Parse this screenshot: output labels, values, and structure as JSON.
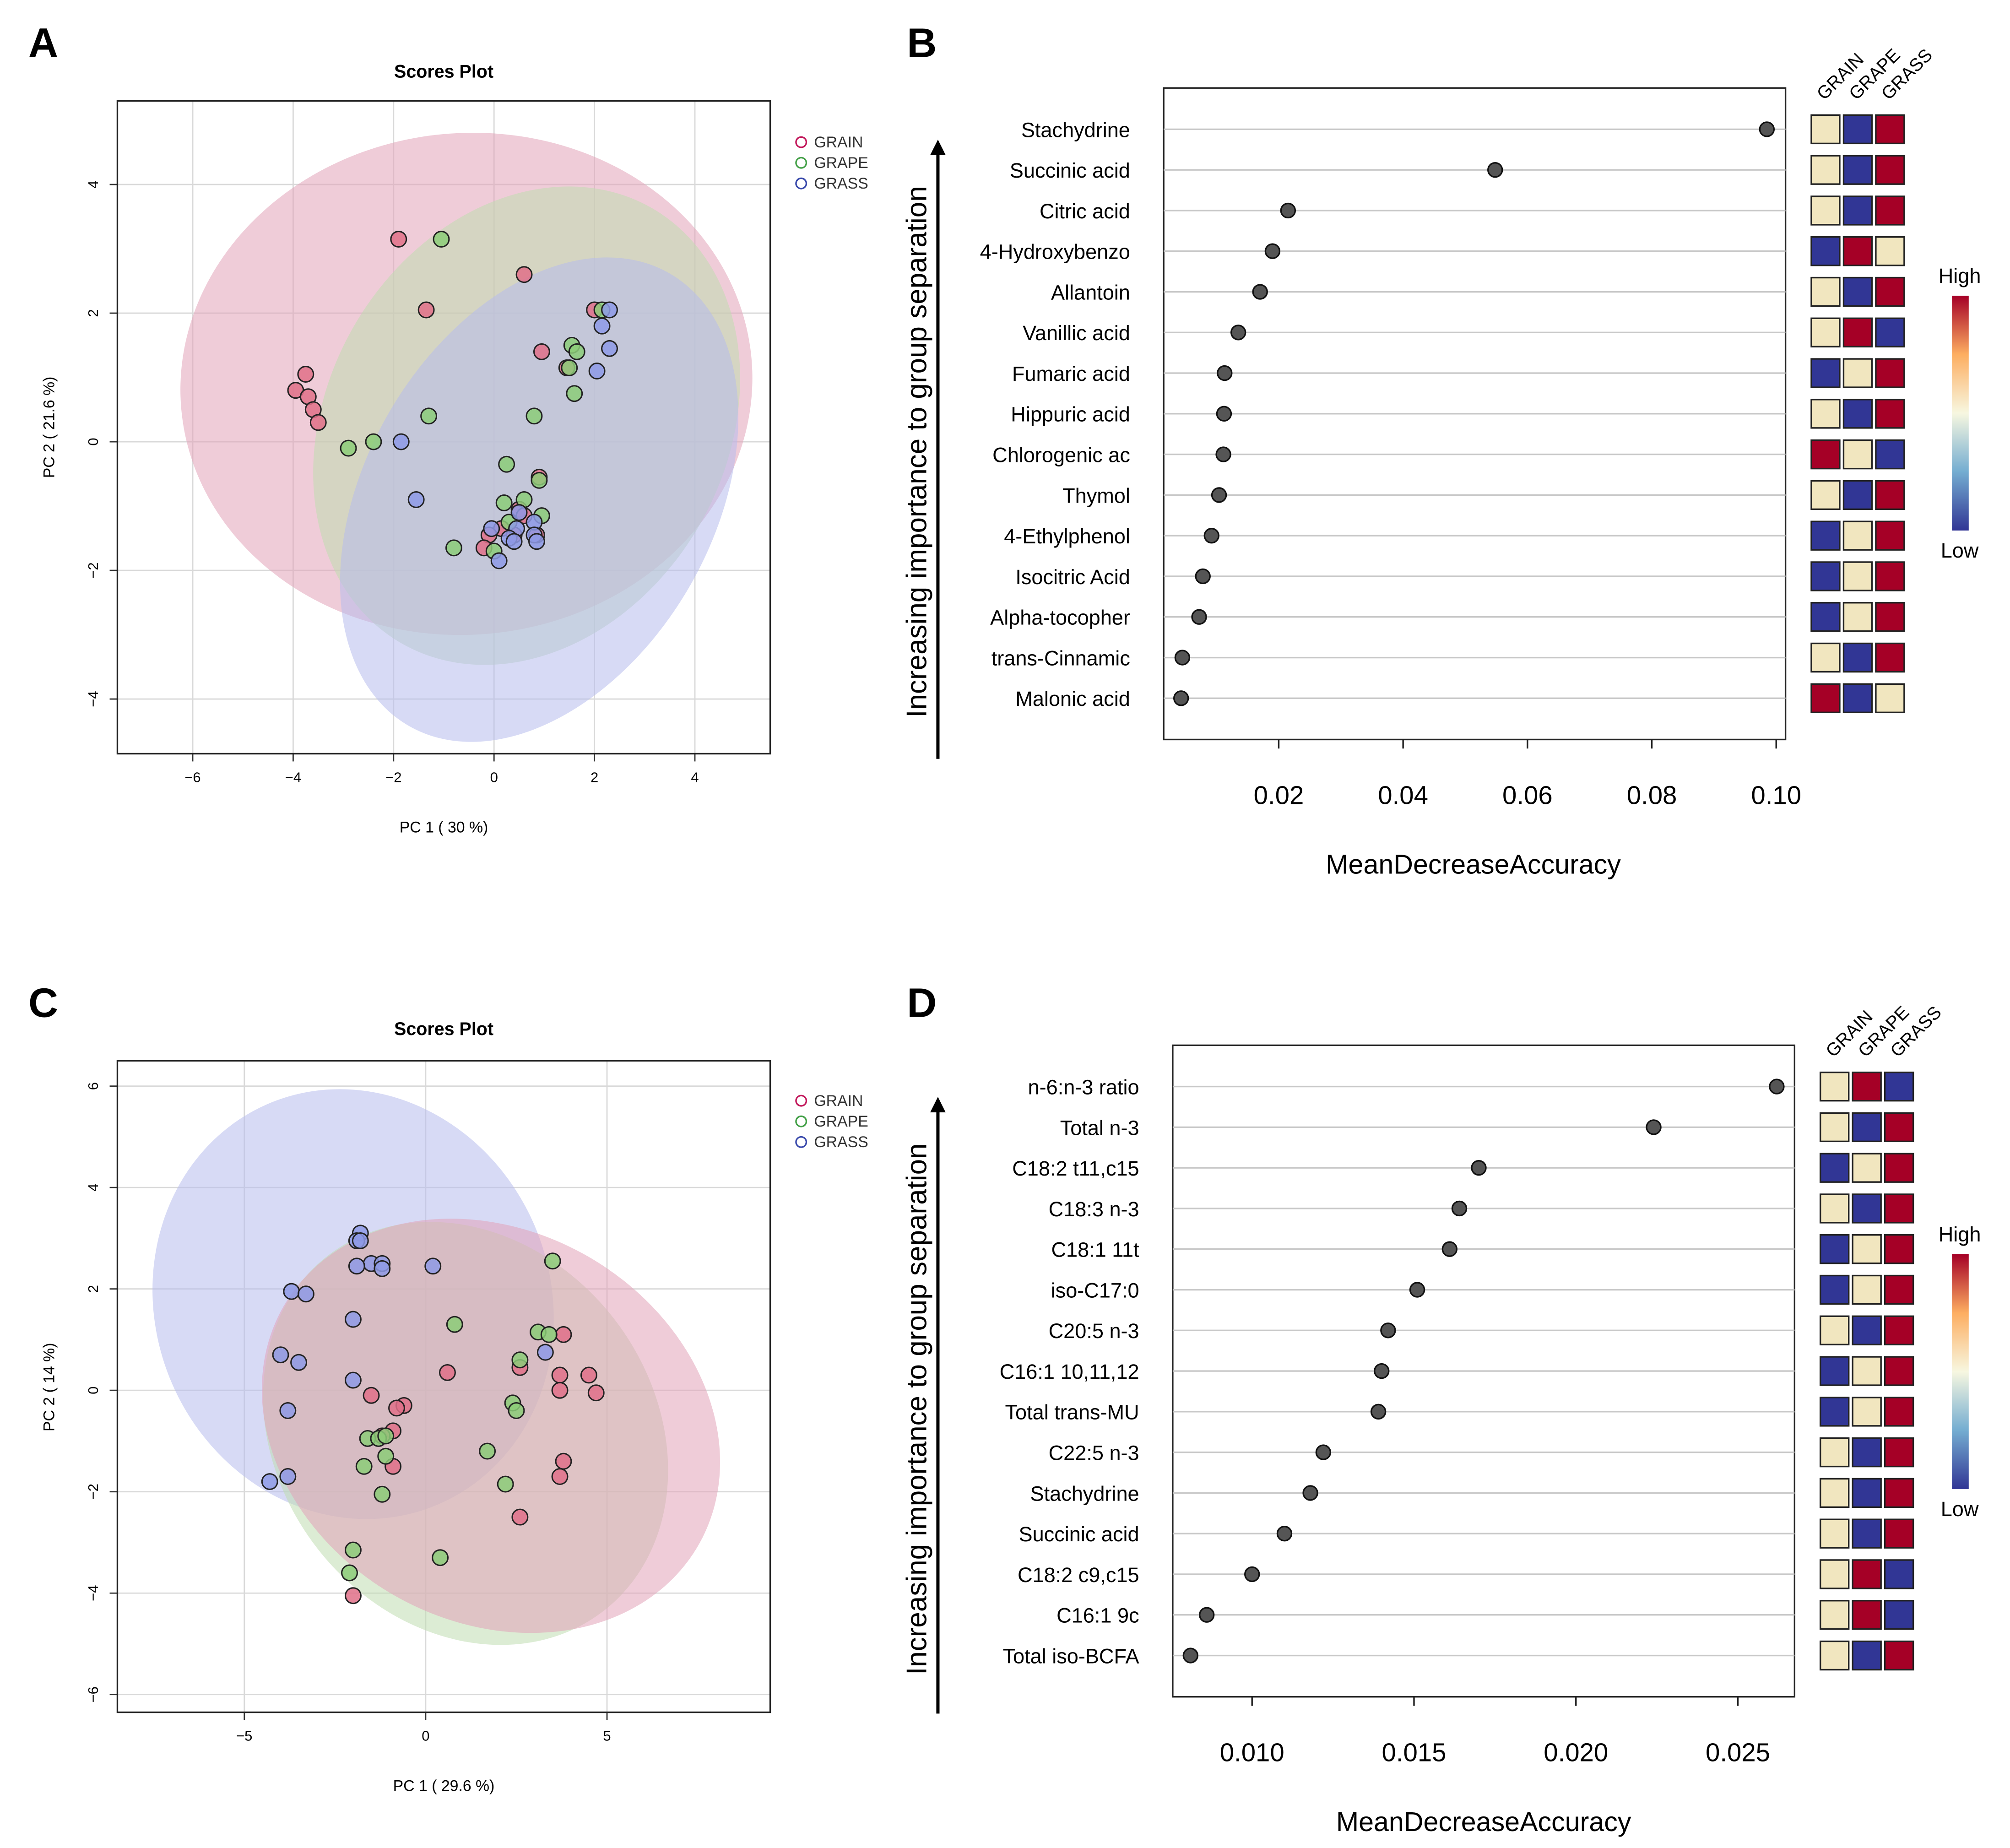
{
  "colors": {
    "grain": "#c2185b",
    "grape": "#43a047",
    "grass": "#3949ab",
    "grain_fill": "#e07088",
    "grape_fill": "#8ccd78",
    "grass_fill": "#8e9ae6",
    "grain_ellipse": "#e1a3b8",
    "grape_ellipse": "#bfdcb0",
    "grass_ellipse": "#b6bcec",
    "dot": "#555555",
    "heat_high": "#a50026",
    "heat_mid": "#f1e6bf",
    "heat_low": "#313695",
    "grid": "#d9d9d9"
  },
  "panel_labels": [
    "A",
    "B",
    "C",
    "D"
  ],
  "chart_data": [
    {
      "id": "A",
      "type": "scatter",
      "title": "Scores Plot",
      "xlabel": "PC 1 ( 30 %)",
      "ylabel": "PC 2 ( 21.6 %)",
      "xlim": [
        -7.5,
        5.5
      ],
      "ylim": [
        -4.85,
        5.3
      ],
      "xticks": [
        -6,
        -4,
        -2,
        0,
        2,
        4
      ],
      "xticklabels": [
        "−6",
        "−4",
        "−2",
        "0",
        "2",
        "4"
      ],
      "yticks": [
        -4,
        -2,
        0,
        2,
        4
      ],
      "yticklabels": [
        "−4",
        "−2",
        "0",
        "2",
        "4"
      ],
      "legend": [
        "GRAIN",
        "GRAPE",
        "GRASS"
      ],
      "ellipses": [
        {
          "group": "GRAIN",
          "cx": -0.55,
          "cy": 0.9,
          "rx": 5.7,
          "ry": 3.9,
          "angle": 5
        },
        {
          "group": "GRAPE",
          "cx": 0.65,
          "cy": 0.25,
          "rx": 5.0,
          "ry": 3.1,
          "angle": 60
        },
        {
          "group": "GRASS",
          "cx": 0.9,
          "cy": -0.9,
          "rx": 5.2,
          "ry": 2.7,
          "angle": 60
        }
      ],
      "series": [
        {
          "name": "GRAIN",
          "points": [
            [
              -1.9,
              3.15
            ],
            [
              0.6,
              2.6
            ],
            [
              -1.35,
              2.05
            ],
            [
              2.0,
              2.05
            ],
            [
              0.95,
              1.4
            ],
            [
              1.45,
              1.15
            ],
            [
              -3.75,
              1.05
            ],
            [
              -3.95,
              0.8
            ],
            [
              -3.7,
              0.7
            ],
            [
              -3.6,
              0.5
            ],
            [
              -3.5,
              0.3
            ],
            [
              0.9,
              -0.55
            ],
            [
              0.5,
              -1.05
            ],
            [
              0.6,
              -1.15
            ],
            [
              0.15,
              -1.35
            ],
            [
              -0.1,
              -1.45
            ],
            [
              0.4,
              -1.45
            ],
            [
              0.85,
              -1.45
            ],
            [
              -0.2,
              -1.65
            ]
          ]
        },
        {
          "name": "GRAPE",
          "points": [
            [
              -1.05,
              3.15
            ],
            [
              2.15,
              2.05
            ],
            [
              1.55,
              1.5
            ],
            [
              1.65,
              1.4
            ],
            [
              1.5,
              1.15
            ],
            [
              1.6,
              0.75
            ],
            [
              -1.3,
              0.4
            ],
            [
              0.8,
              0.4
            ],
            [
              -2.4,
              0.0
            ],
            [
              -2.9,
              -0.1
            ],
            [
              0.25,
              -0.35
            ],
            [
              0.9,
              -0.6
            ],
            [
              0.2,
              -0.95
            ],
            [
              0.6,
              -0.9
            ],
            [
              0.95,
              -1.15
            ],
            [
              0.3,
              -1.25
            ],
            [
              -0.8,
              -1.65
            ],
            [
              0.0,
              -1.7
            ]
          ]
        },
        {
          "name": "GRASS",
          "points": [
            [
              2.3,
              2.05
            ],
            [
              2.15,
              1.8
            ],
            [
              2.3,
              1.45
            ],
            [
              2.05,
              1.1
            ],
            [
              -1.85,
              0.0
            ],
            [
              -1.55,
              -0.9
            ],
            [
              0.5,
              -1.1
            ],
            [
              0.8,
              -1.25
            ],
            [
              -0.05,
              -1.35
            ],
            [
              0.45,
              -1.35
            ],
            [
              0.3,
              -1.5
            ],
            [
              0.8,
              -1.45
            ],
            [
              0.85,
              -1.55
            ],
            [
              0.4,
              -1.55
            ],
            [
              0.1,
              -1.85
            ]
          ]
        }
      ]
    },
    {
      "id": "B",
      "type": "dot",
      "xlabel": "MeanDecreaseAccuracy",
      "ylabel": "Increasing importance to group separation",
      "xlim": [
        0.0015,
        0.1015
      ],
      "xticks": [
        0.02,
        0.04,
        0.06,
        0.08,
        0.1
      ],
      "xticklabels": [
        "0.02",
        "0.04",
        "0.06",
        "0.08",
        "0.10"
      ],
      "heatmap_columns": [
        "GRAIN",
        "GRAPE",
        "GRASS"
      ],
      "legend_high": "High",
      "legend_low": "Low",
      "rows": [
        {
          "label": "Stachydrine",
          "value": 0.0985,
          "heat": [
            "M",
            "L",
            "H"
          ]
        },
        {
          "label": "Succinic acid",
          "value": 0.0548,
          "heat": [
            "M",
            "L",
            "H"
          ]
        },
        {
          "label": "Citric acid",
          "value": 0.0215,
          "heat": [
            "M",
            "L",
            "H"
          ]
        },
        {
          "label": "4-Hydroxybenzo",
          "value": 0.019,
          "heat": [
            "L",
            "H",
            "M"
          ]
        },
        {
          "label": "Allantoin",
          "value": 0.017,
          "heat": [
            "M",
            "L",
            "H"
          ]
        },
        {
          "label": "Vanillic acid",
          "value": 0.0135,
          "heat": [
            "M",
            "H",
            "L"
          ]
        },
        {
          "label": "Fumaric acid",
          "value": 0.0113,
          "heat": [
            "L",
            "M",
            "H"
          ]
        },
        {
          "label": "Hippuric acid",
          "value": 0.0112,
          "heat": [
            "M",
            "L",
            "H"
          ]
        },
        {
          "label": "Chlorogenic ac",
          "value": 0.0111,
          "heat": [
            "H",
            "M",
            "L"
          ]
        },
        {
          "label": "Thymol",
          "value": 0.0104,
          "heat": [
            "M",
            "L",
            "H"
          ]
        },
        {
          "label": "4-Ethylphenol",
          "value": 0.0092,
          "heat": [
            "L",
            "M",
            "H"
          ]
        },
        {
          "label": "Isocitric Acid",
          "value": 0.0078,
          "heat": [
            "L",
            "M",
            "H"
          ]
        },
        {
          "label": "Alpha-tocopher",
          "value": 0.0072,
          "heat": [
            "L",
            "M",
            "H"
          ]
        },
        {
          "label": "trans-Cinnamic",
          "value": 0.0045,
          "heat": [
            "M",
            "L",
            "H"
          ]
        },
        {
          "label": "Malonic acid",
          "value": 0.0043,
          "heat": [
            "H",
            "L",
            "M"
          ]
        }
      ]
    },
    {
      "id": "C",
      "type": "scatter",
      "title": "Scores Plot",
      "xlabel": "PC 1 ( 29.6 %)",
      "ylabel": "PC 2 ( 14 %)",
      "xlim": [
        -8.5,
        9.5
      ],
      "ylim": [
        -6.35,
        6.5
      ],
      "xticks": [
        -5,
        0,
        5
      ],
      "xticklabels": [
        "−5",
        "0",
        "5"
      ],
      "yticks": [
        -6,
        -4,
        -2,
        0,
        2,
        4,
        6
      ],
      "yticklabels": [
        "−6",
        "−4",
        "−2",
        "0",
        "2",
        "4",
        "6"
      ],
      "legend": [
        "GRAIN",
        "GRAPE",
        "GRASS"
      ],
      "ellipses": [
        {
          "group": "GRASS",
          "cx": -2.0,
          "cy": 1.7,
          "rx": 6.0,
          "ry": 3.9,
          "angle": -68
        },
        {
          "group": "GRAPE",
          "cx": 1.1,
          "cy": -0.85,
          "rx": 6.2,
          "ry": 3.7,
          "angle": -52
        },
        {
          "group": "GRAIN",
          "cx": 1.8,
          "cy": -0.7,
          "rx": 6.6,
          "ry": 3.85,
          "angle": -30
        }
      ],
      "series": [
        {
          "name": "GRAIN",
          "points": [
            [
              3.8,
              1.1
            ],
            [
              0.6,
              0.35
            ],
            [
              2.6,
              0.45
            ],
            [
              3.7,
              0.3
            ],
            [
              4.5,
              0.3
            ],
            [
              3.7,
              0.0
            ],
            [
              4.7,
              -0.05
            ],
            [
              -1.5,
              -0.1
            ],
            [
              -0.6,
              -0.3
            ],
            [
              -0.8,
              -0.35
            ],
            [
              -0.9,
              -0.8
            ],
            [
              -1.2,
              -0.9
            ],
            [
              -0.9,
              -1.5
            ],
            [
              3.8,
              -1.4
            ],
            [
              3.7,
              -1.7
            ],
            [
              2.6,
              -2.5
            ],
            [
              -2.0,
              -4.05
            ]
          ]
        },
        {
          "name": "GRAPE",
          "points": [
            [
              3.5,
              2.55
            ],
            [
              0.8,
              1.3
            ],
            [
              3.1,
              1.15
            ],
            [
              3.4,
              1.1
            ],
            [
              2.6,
              0.6
            ],
            [
              2.4,
              -0.25
            ],
            [
              2.5,
              -0.4
            ],
            [
              -1.6,
              -0.95
            ],
            [
              -1.3,
              -0.95
            ],
            [
              -1.1,
              -0.9
            ],
            [
              -1.1,
              -1.3
            ],
            [
              -1.7,
              -1.5
            ],
            [
              1.7,
              -1.2
            ],
            [
              2.2,
              -1.85
            ],
            [
              -1.2,
              -2.05
            ],
            [
              -2.0,
              -3.15
            ],
            [
              0.4,
              -3.3
            ],
            [
              -2.1,
              -3.6
            ]
          ]
        },
        {
          "name": "GRASS",
          "points": [
            [
              -1.8,
              3.1
            ],
            [
              -1.9,
              2.95
            ],
            [
              -1.8,
              2.95
            ],
            [
              -1.5,
              2.5
            ],
            [
              -1.2,
              2.5
            ],
            [
              -1.2,
              2.4
            ],
            [
              0.2,
              2.45
            ],
            [
              -1.9,
              2.45
            ],
            [
              -3.7,
              1.95
            ],
            [
              -3.3,
              1.9
            ],
            [
              -2.0,
              1.4
            ],
            [
              3.3,
              0.75
            ],
            [
              -4.0,
              0.7
            ],
            [
              -3.5,
              0.55
            ],
            [
              -2.0,
              0.2
            ],
            [
              -3.8,
              -0.4
            ],
            [
              -3.8,
              -1.7
            ],
            [
              -4.3,
              -1.8
            ]
          ]
        }
      ]
    },
    {
      "id": "D",
      "type": "dot",
      "xlabel": "MeanDecreaseAccuracy",
      "ylabel": "Increasing importance to group separation",
      "xlim": [
        0.00755,
        0.02675
      ],
      "xticks": [
        0.01,
        0.015,
        0.02,
        0.025
      ],
      "xticklabels": [
        "0.010",
        "0.015",
        "0.020",
        "0.025"
      ],
      "heatmap_columns": [
        "GRAIN",
        "GRAPE",
        "GRASS"
      ],
      "legend_high": "High",
      "legend_low": "Low",
      "rows": [
        {
          "label": "n-6:n-3 ratio",
          "value": 0.0262,
          "heat": [
            "M",
            "H",
            "L"
          ]
        },
        {
          "label": "Total n-3",
          "value": 0.0224,
          "heat": [
            "M",
            "L",
            "H"
          ]
        },
        {
          "label": "C18:2 t11,c15",
          "value": 0.017,
          "heat": [
            "L",
            "M",
            "H"
          ]
        },
        {
          "label": "C18:3 n-3",
          "value": 0.0164,
          "heat": [
            "M",
            "L",
            "H"
          ]
        },
        {
          "label": "C18:1 11t",
          "value": 0.0161,
          "heat": [
            "L",
            "M",
            "H"
          ]
        },
        {
          "label": "iso-C17:0",
          "value": 0.0151,
          "heat": [
            "L",
            "M",
            "H"
          ]
        },
        {
          "label": "C20:5 n-3",
          "value": 0.0142,
          "heat": [
            "M",
            "L",
            "H"
          ]
        },
        {
          "label": "C16:1 10,11,12",
          "value": 0.014,
          "heat": [
            "L",
            "M",
            "H"
          ]
        },
        {
          "label": "Total trans-MU",
          "value": 0.0139,
          "heat": [
            "L",
            "M",
            "H"
          ]
        },
        {
          "label": "C22:5 n-3",
          "value": 0.0122,
          "heat": [
            "M",
            "L",
            "H"
          ]
        },
        {
          "label": "Stachydrine",
          "value": 0.0118,
          "heat": [
            "M",
            "L",
            "H"
          ]
        },
        {
          "label": "Succinic acid",
          "value": 0.011,
          "heat": [
            "M",
            "L",
            "H"
          ]
        },
        {
          "label": "C18:2 c9,c15",
          "value": 0.01,
          "heat": [
            "M",
            "H",
            "L"
          ]
        },
        {
          "label": "C16:1 9c",
          "value": 0.0086,
          "heat": [
            "M",
            "H",
            "L"
          ]
        },
        {
          "label": "Total iso-BCFA",
          "value": 0.0081,
          "heat": [
            "M",
            "L",
            "H"
          ]
        }
      ]
    }
  ]
}
